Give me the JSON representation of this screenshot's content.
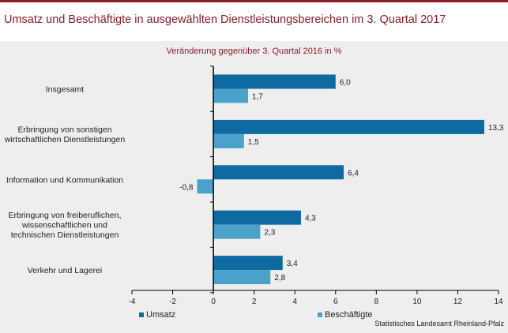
{
  "title": "Umsatz und Beschäftigte in ausgewählten Dienstleistungsbereichen im 3. Quartal 2017",
  "subtitle": "Veränderung gegenüber 3. Quartal 2016 in %",
  "source": "Statistisches Landesamt Rheinland-Pfalz",
  "colors": {
    "accent": "#8a1c2c",
    "umsatz": "#0e6aa0",
    "beschaeftigte": "#4aa2cb"
  },
  "chart_data": {
    "type": "bar",
    "orientation": "horizontal",
    "categories": [
      [
        "Insgesamt"
      ],
      [
        "Erbringung von sonstigen",
        "wirtschaftlichen Dienstleistungen"
      ],
      [
        "Information und Kommunikation"
      ],
      [
        "Erbringung von freiberuflichen,",
        "wissenschaftlichen und",
        "technischen Dienstleistungen"
      ],
      [
        "Verkehr und Lagerei"
      ]
    ],
    "series": [
      {
        "name": "Umsatz",
        "values": [
          6.0,
          13.3,
          6.4,
          4.3,
          3.4
        ],
        "labels": [
          "6,0",
          "13,3",
          "6,4",
          "4,3",
          "3,4"
        ]
      },
      {
        "name": "Beschäftigte",
        "values": [
          1.7,
          1.5,
          -0.8,
          2.3,
          2.8
        ],
        "labels": [
          "1,7",
          "1,5",
          "-0,8",
          "2,3",
          "2,8"
        ]
      }
    ],
    "xlim": [
      -4,
      14
    ],
    "xticks": [
      -4,
      -2,
      0,
      2,
      4,
      6,
      8,
      10,
      12,
      14
    ],
    "xtick_labels": [
      "-4",
      "-2",
      "0",
      "2",
      "4",
      "6",
      "8",
      "10",
      "12",
      "14"
    ],
    "legend_position": "bottom",
    "grid": false
  }
}
